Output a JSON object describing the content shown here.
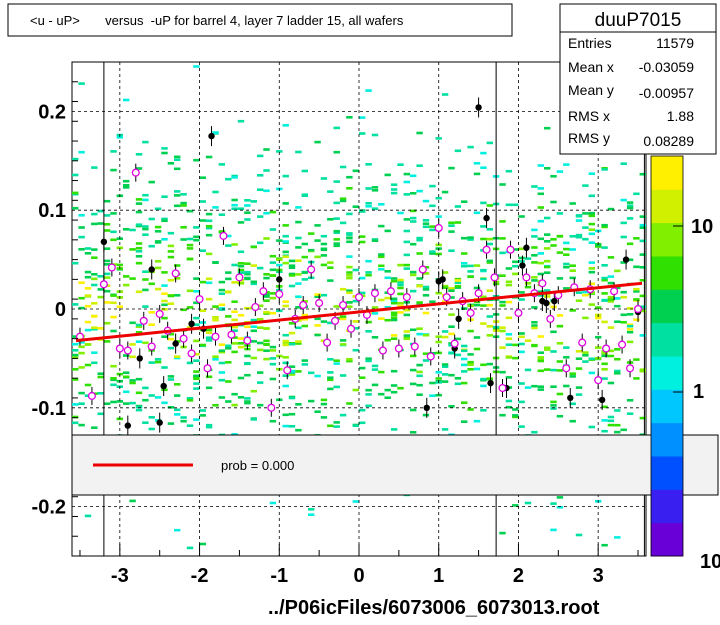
{
  "title": "<u - uP>       versus  -uP for barrel 4, layer 7 ladder 15, all wafers",
  "footer_text": "../P06icFiles/6073006_6073013.root",
  "colors": {
    "fit_line": "#ee0000",
    "profile_marker": "#e000e0",
    "black_marker": "#000000",
    "palette": [
      "#6a00d8",
      "#3a20f0",
      "#0050ff",
      "#0090ff",
      "#00c8ff",
      "#00f0e0",
      "#00e0a0",
      "#00d050",
      "#30e000",
      "#80f000",
      "#d0f000",
      "#fff000"
    ]
  },
  "stats": {
    "name": "duuP7015",
    "rows": [
      {
        "label": "Entries",
        "value": "11579"
      },
      {
        "label": "Mean x",
        "value": "-0.03059"
      },
      {
        "label": "Mean y",
        "value": "-0.00957"
      },
      {
        "label": "RMS x",
        "value": "1.88"
      },
      {
        "label": "RMS y",
        "value": "0.08289"
      }
    ]
  },
  "legend": {
    "entries": [
      {
        "label": "prob = 0.000",
        "color": "#ee0000"
      }
    ]
  },
  "colorbar": {
    "scale": "log",
    "tick_labels": [
      "10",
      "1",
      "10"
    ]
  },
  "chart_data": {
    "type": "heatmap",
    "xlim": [
      -3.6,
      3.6
    ],
    "ylim": [
      -0.25,
      0.25
    ],
    "grid": true,
    "x_ticks": [
      -3,
      -2,
      -1,
      0,
      1,
      2,
      3
    ],
    "x_tick_labels": [
      "-3",
      "-2",
      "-1",
      "0",
      "1",
      "2",
      "3"
    ],
    "y_ticks": [
      -0.2,
      -0.1,
      0,
      0.1,
      0.2
    ],
    "y_tick_labels": [
      "-0.2",
      "-0.1",
      "0",
      "0.1",
      "0.2"
    ],
    "vertical_lines_x": [
      -3.2,
      1.72,
      3.58
    ],
    "fit_line": {
      "x": [
        -3.55,
        3.55
      ],
      "y": [
        -0.032,
        0.026
      ]
    },
    "profile_points": [
      {
        "x": -3.5,
        "y": -0.028
      },
      {
        "x": -3.35,
        "y": -0.088
      },
      {
        "x": -3.2,
        "y": 0.025
      },
      {
        "x": -3.1,
        "y": 0.042
      },
      {
        "x": -3.0,
        "y": -0.04
      },
      {
        "x": -2.9,
        "y": -0.042
      },
      {
        "x": -2.8,
        "y": 0.138
      },
      {
        "x": -2.7,
        "y": -0.012
      },
      {
        "x": -2.6,
        "y": -0.038
      },
      {
        "x": -2.5,
        "y": -0.005
      },
      {
        "x": -2.4,
        "y": -0.022
      },
      {
        "x": -2.3,
        "y": 0.036
      },
      {
        "x": -2.2,
        "y": -0.03
      },
      {
        "x": -2.1,
        "y": -0.045
      },
      {
        "x": -2.0,
        "y": 0.01
      },
      {
        "x": -1.9,
        "y": -0.06
      },
      {
        "x": -1.8,
        "y": -0.028
      },
      {
        "x": -1.7,
        "y": 0.074
      },
      {
        "x": -1.6,
        "y": -0.026
      },
      {
        "x": -1.5,
        "y": 0.032
      },
      {
        "x": -1.4,
        "y": -0.032
      },
      {
        "x": -1.3,
        "y": 0.002
      },
      {
        "x": -1.2,
        "y": 0.018
      },
      {
        "x": -1.1,
        "y": -0.1
      },
      {
        "x": -1.0,
        "y": 0.015
      },
      {
        "x": -0.9,
        "y": -0.062
      },
      {
        "x": -0.8,
        "y": -0.01
      },
      {
        "x": -0.7,
        "y": 0.004
      },
      {
        "x": -0.6,
        "y": 0.04
      },
      {
        "x": -0.5,
        "y": 0.006
      },
      {
        "x": -0.4,
        "y": -0.034
      },
      {
        "x": -0.3,
        "y": -0.012
      },
      {
        "x": -0.2,
        "y": 0.004
      },
      {
        "x": -0.1,
        "y": -0.02
      },
      {
        "x": 0.0,
        "y": 0.012
      },
      {
        "x": 0.1,
        "y": -0.006
      },
      {
        "x": 0.2,
        "y": 0.016
      },
      {
        "x": 0.3,
        "y": -0.042
      },
      {
        "x": 0.4,
        "y": 0.018
      },
      {
        "x": 0.5,
        "y": -0.04
      },
      {
        "x": 0.6,
        "y": 0.012
      },
      {
        "x": 0.7,
        "y": -0.038
      },
      {
        "x": 0.8,
        "y": 0.04
      },
      {
        "x": 0.9,
        "y": -0.048
      },
      {
        "x": 1.0,
        "y": 0.082
      },
      {
        "x": 1.1,
        "y": 0.012
      },
      {
        "x": 1.2,
        "y": -0.035
      },
      {
        "x": 1.3,
        "y": 0.008
      },
      {
        "x": 1.4,
        "y": -0.004
      },
      {
        "x": 1.5,
        "y": 0.016
      },
      {
        "x": 1.6,
        "y": 0.06
      },
      {
        "x": 1.7,
        "y": 0.032
      },
      {
        "x": 1.8,
        "y": -0.08
      },
      {
        "x": 1.9,
        "y": 0.06
      },
      {
        "x": 2.0,
        "y": -0.004
      },
      {
        "x": 2.1,
        "y": 0.032
      },
      {
        "x": 2.2,
        "y": 0.016
      },
      {
        "x": 2.3,
        "y": 0.026
      },
      {
        "x": 2.4,
        "y": -0.01
      },
      {
        "x": 2.5,
        "y": 0.014
      },
      {
        "x": 2.6,
        "y": -0.06
      },
      {
        "x": 2.7,
        "y": 0.022
      },
      {
        "x": 2.8,
        "y": -0.034
      },
      {
        "x": 2.9,
        "y": 0.02
      },
      {
        "x": 3.0,
        "y": -0.072
      },
      {
        "x": 3.1,
        "y": -0.04
      },
      {
        "x": 3.2,
        "y": 0.018
      },
      {
        "x": 3.3,
        "y": -0.036
      },
      {
        "x": 3.4,
        "y": -0.06
      },
      {
        "x": 3.5,
        "y": 0.0
      }
    ],
    "black_points": [
      {
        "x": -3.2,
        "y": 0.068
      },
      {
        "x": -2.9,
        "y": -0.118
      },
      {
        "x": -2.75,
        "y": -0.05
      },
      {
        "x": -2.6,
        "y": 0.04
      },
      {
        "x": -2.5,
        "y": -0.115
      },
      {
        "x": -2.45,
        "y": -0.078
      },
      {
        "x": -2.3,
        "y": -0.035
      },
      {
        "x": -2.1,
        "y": -0.015
      },
      {
        "x": -1.95,
        "y": -0.02
      },
      {
        "x": -1.85,
        "y": 0.175
      },
      {
        "x": -1.0,
        "y": 0.03
      },
      {
        "x": 0.85,
        "y": -0.1
      },
      {
        "x": 1.0,
        "y": 0.028
      },
      {
        "x": 1.05,
        "y": 0.03
      },
      {
        "x": 1.2,
        "y": -0.04
      },
      {
        "x": 1.25,
        "y": -0.01
      },
      {
        "x": 1.5,
        "y": 0.204
      },
      {
        "x": 1.6,
        "y": 0.092
      },
      {
        "x": 1.65,
        "y": -0.075
      },
      {
        "x": 1.85,
        "y": -0.08
      },
      {
        "x": 2.1,
        "y": 0.062
      },
      {
        "x": 2.05,
        "y": 0.044
      },
      {
        "x": 2.3,
        "y": 0.008
      },
      {
        "x": 2.35,
        "y": 0.006
      },
      {
        "x": 2.45,
        "y": 0.008
      },
      {
        "x": 2.65,
        "y": -0.09
      },
      {
        "x": 3.05,
        "y": -0.092
      },
      {
        "x": 3.35,
        "y": 0.05
      },
      {
        "x": 3.5,
        "y": -0.003
      }
    ]
  }
}
